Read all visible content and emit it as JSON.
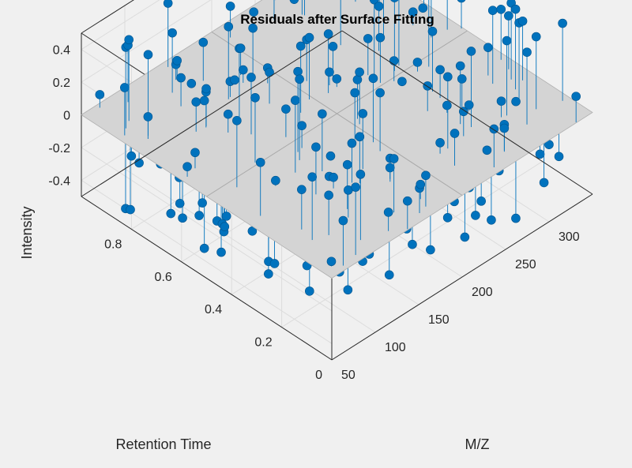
{
  "chart_data": {
    "type": "stem3-scatter",
    "title": "Residuals after Surface Fitting",
    "xlabel": "M/Z",
    "ylabel": "Retention Time",
    "zlabel": "Intensity",
    "xlim": [
      50,
      350
    ],
    "ylim": [
      0,
      1
    ],
    "zlim": [
      -0.5,
      0.5
    ],
    "xticks": [
      "50",
      "100",
      "150",
      "200",
      "250",
      "300"
    ],
    "yticks": [
      "0",
      "0.2",
      "0.4",
      "0.6",
      "0.8"
    ],
    "zticks": [
      "-0.4",
      "-0.2",
      "0",
      "0.2",
      "0.4"
    ],
    "grid": true,
    "surface": "z = 0 plane",
    "color": "#0072bd",
    "plane_color": "#d4d4d4",
    "background": "#f0f0f0",
    "n_points": 300,
    "point_generation": "pseudo-random residuals, uniform in x and y, z in [-0.5, 0.5]"
  }
}
